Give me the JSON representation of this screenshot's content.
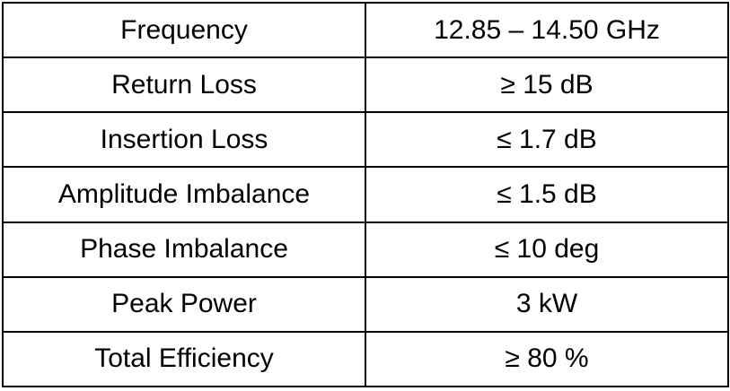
{
  "table": {
    "rows": [
      {
        "parameter": "Frequency",
        "value": "12.85 – 14.50 GHz"
      },
      {
        "parameter": "Return Loss",
        "value": "≥ 15 dB"
      },
      {
        "parameter": "Insertion Loss",
        "value": "≤ 1.7 dB"
      },
      {
        "parameter": "Amplitude Imbalance",
        "value": "≤ 1.5 dB"
      },
      {
        "parameter": "Phase Imbalance",
        "value": "≤ 10 deg"
      },
      {
        "parameter": "Peak Power",
        "value": "3 kW"
      },
      {
        "parameter": "Total Efficiency",
        "value": "≥ 80 %"
      }
    ]
  }
}
